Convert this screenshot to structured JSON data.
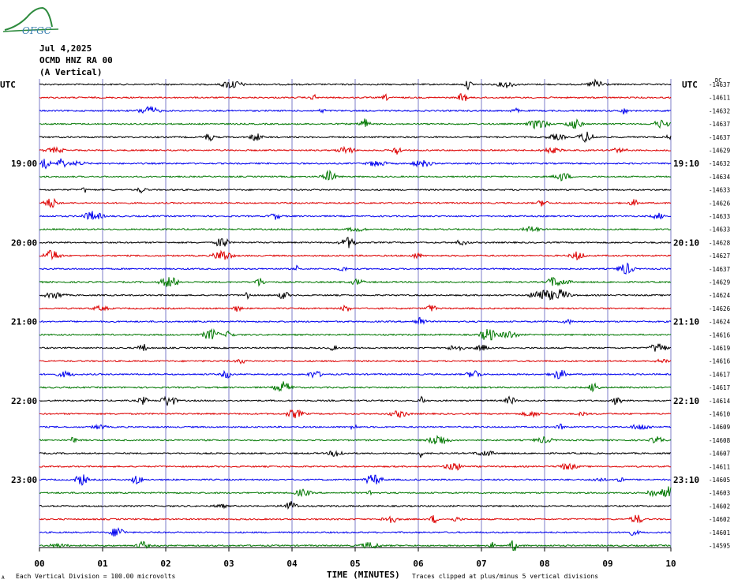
{
  "logo": {
    "text": "OFGC"
  },
  "header": {
    "date": "Jul 4,2025",
    "station": "OCMD HNZ RA 00",
    "component": "(A Vertical)"
  },
  "left_axis_label": "UTC",
  "right_axis_label": "UTC",
  "right_column_header": "DC",
  "footer": {
    "division": "Each Vertical Division =  100.00 microvolts",
    "clipping": "Traces clipped at plus/minus 5 vertical divisions",
    "corner_mark": "A"
  },
  "colors": {
    "black": "#000000",
    "red": "#dd0000",
    "blue": "#0000ee",
    "green": "#007700",
    "grid": "#7d7dc8"
  },
  "chart_data": {
    "type": "line",
    "title": "",
    "xlabel": "TIME (MINUTES)",
    "x_ticks": [
      "00",
      "01",
      "02",
      "03",
      "04",
      "05",
      "06",
      "07",
      "08",
      "09",
      "10"
    ],
    "xlim": [
      0,
      10
    ],
    "trace_color_cycle": [
      "black",
      "red",
      "blue",
      "green"
    ],
    "left_hour_labels": [
      {
        "row": 6,
        "label": "19:00"
      },
      {
        "row": 12,
        "label": "20:00"
      },
      {
        "row": 18,
        "label": "21:00"
      },
      {
        "row": 24,
        "label": "22:00"
      },
      {
        "row": 30,
        "label": "23:00"
      }
    ],
    "right_hour_labels": [
      {
        "row": 6,
        "label": "19:10"
      },
      {
        "row": 12,
        "label": "20:10"
      },
      {
        "row": 18,
        "label": "21:10"
      },
      {
        "row": 24,
        "label": "22:10"
      },
      {
        "row": 30,
        "label": "23:10"
      }
    ],
    "dc_offsets": [
      "-14637",
      "-14611",
      "-14632",
      "-14637",
      "-14637",
      "-14629",
      "-14632",
      "-14634",
      "-14633",
      "-14626",
      "-14633",
      "-14633",
      "-14628",
      "-14627",
      "-14637",
      "-14629",
      "-14624",
      "-14626",
      "-14624",
      "-14616",
      "-14619",
      "-14616",
      "-14617",
      "-14617",
      "-14614",
      "-14610",
      "-14609",
      "-14608",
      "-14607",
      "-14611",
      "-14605",
      "-14603",
      "-14602",
      "-14602",
      "-14601",
      "-14595"
    ]
  }
}
